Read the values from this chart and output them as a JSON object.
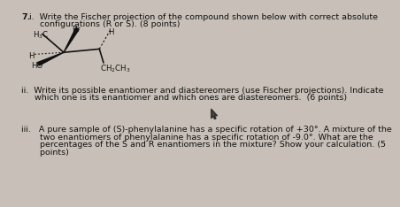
{
  "background_color": "#c8c0b8",
  "text_color": "#111111",
  "font_size": 6.8,
  "mol_font_size": 6.2,
  "part_i_line1": "i.  Write the Fischer projection of the compound shown below with correct absolute",
  "part_i_line2": "    configurations (R or S). (8 points)",
  "part_ii_line1": "ii.  Write its possible enantiomer and diastereomers (use Fischer projections). Indicate",
  "part_ii_line2": "     which one is its enantiomer and which ones are diastereomers.  (6 points)",
  "part_iii_line1": "iii.   A pure sample of (S)-phenylalanine has a specific rotation of +30°. A mixture of the",
  "part_iii_line2": "       two enantiomers of phenylalanine has a specific rotation of -9.0°. What are the",
  "part_iii_line3": "       percentages of the S and R enantiomers in the mixture? Show your calculation. (5",
  "part_iii_line4": "       points)"
}
